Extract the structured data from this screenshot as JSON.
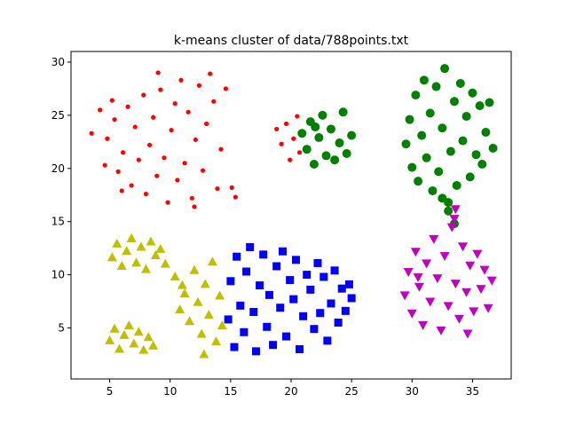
{
  "chart_data": {
    "type": "scatter",
    "title": "k-means cluster of data/788points.txt",
    "xlabel": "",
    "ylabel": "",
    "xlim": [
      1.8,
      38.2
    ],
    "ylim": [
      0.2,
      31.0
    ],
    "xticks": [
      5,
      10,
      15,
      20,
      25,
      30,
      35
    ],
    "yticks": [
      5,
      10,
      15,
      20,
      25,
      30
    ],
    "grid": false,
    "legend": "none",
    "series": [
      {
        "name": "cluster-red",
        "marker": "circle-small",
        "color": "#ff0000",
        "points": [
          [
            3.5,
            23.3
          ],
          [
            4.2,
            25.5
          ],
          [
            4.6,
            20.3
          ],
          [
            4.8,
            22.8
          ],
          [
            5.2,
            26.4
          ],
          [
            5.4,
            24.6
          ],
          [
            5.7,
            19.7
          ],
          [
            6.1,
            21.5
          ],
          [
            6.5,
            25.8
          ],
          [
            6.8,
            18.4
          ],
          [
            7.1,
            23.9
          ],
          [
            7.4,
            20.8
          ],
          [
            7.8,
            26.9
          ],
          [
            8.0,
            17.6
          ],
          [
            8.3,
            22.2
          ],
          [
            8.6,
            24.8
          ],
          [
            8.9,
            19.3
          ],
          [
            9.2,
            27.4
          ],
          [
            9.5,
            21.0
          ],
          [
            9.8,
            16.8
          ],
          [
            10.1,
            23.6
          ],
          [
            10.4,
            26.1
          ],
          [
            10.6,
            18.9
          ],
          [
            10.9,
            28.3
          ],
          [
            11.2,
            20.5
          ],
          [
            11.5,
            25.3
          ],
          [
            11.8,
            17.2
          ],
          [
            12.1,
            22.7
          ],
          [
            12.4,
            27.8
          ],
          [
            12.7,
            19.8
          ],
          [
            13.0,
            24.2
          ],
          [
            13.3,
            28.9
          ],
          [
            13.6,
            26.3
          ],
          [
            13.9,
            18.1
          ],
          [
            14.2,
            21.8
          ],
          [
            14.6,
            27.5
          ],
          [
            15.1,
            18.2
          ],
          [
            15.4,
            17.3
          ],
          [
            6.0,
            17.9
          ],
          [
            9.0,
            29.0
          ],
          [
            12.0,
            16.4
          ]
        ]
      },
      {
        "name": "cluster-green-small",
        "marker": "circle",
        "color": "#008000",
        "points": [
          [
            20.9,
            23.3
          ],
          [
            21.3,
            21.8
          ],
          [
            21.6,
            24.4
          ],
          [
            21.9,
            20.4
          ],
          [
            22.3,
            22.9
          ],
          [
            22.6,
            25.0
          ],
          [
            22.9,
            21.2
          ],
          [
            23.3,
            23.7
          ],
          [
            23.6,
            20.8
          ],
          [
            24.0,
            22.4
          ],
          [
            24.3,
            25.3
          ],
          [
            24.6,
            21.4
          ],
          [
            25.0,
            23.1
          ],
          [
            22.0,
            23.9
          ]
        ]
      },
      {
        "name": "cluster-red-small",
        "marker": "circle-small",
        "color": "#ff0000",
        "points": [
          [
            18.8,
            23.7
          ],
          [
            19.2,
            22.3
          ],
          [
            19.6,
            24.2
          ],
          [
            19.9,
            20.8
          ],
          [
            20.2,
            22.8
          ],
          [
            20.5,
            24.9
          ],
          [
            20.7,
            21.5
          ]
        ]
      },
      {
        "name": "cluster-green",
        "marker": "circle",
        "color": "#008000",
        "points": [
          [
            29.5,
            22.3
          ],
          [
            29.8,
            24.6
          ],
          [
            30.0,
            20.1
          ],
          [
            30.3,
            26.9
          ],
          [
            30.5,
            18.8
          ],
          [
            30.8,
            23.1
          ],
          [
            31.0,
            28.3
          ],
          [
            31.2,
            21.0
          ],
          [
            31.5,
            25.2
          ],
          [
            31.7,
            17.9
          ],
          [
            32.0,
            27.7
          ],
          [
            32.2,
            19.7
          ],
          [
            32.5,
            23.8
          ],
          [
            32.7,
            29.4
          ],
          [
            33.0,
            16.8
          ],
          [
            33.2,
            21.6
          ],
          [
            33.5,
            26.3
          ],
          [
            33.7,
            18.4
          ],
          [
            34.0,
            28.0
          ],
          [
            34.2,
            22.6
          ],
          [
            34.5,
            24.9
          ],
          [
            34.8,
            19.2
          ],
          [
            35.0,
            27.1
          ],
          [
            35.3,
            21.3
          ],
          [
            35.6,
            25.9
          ],
          [
            35.8,
            20.4
          ],
          [
            36.1,
            23.4
          ],
          [
            36.4,
            26.2
          ],
          [
            36.7,
            21.9
          ],
          [
            33.0,
            16.0
          ],
          [
            33.5,
            14.8
          ],
          [
            32.5,
            17.2
          ]
        ]
      },
      {
        "name": "cluster-magenta",
        "marker": "triangle-down",
        "color": "#bf00bf",
        "points": [
          [
            29.4,
            8.1
          ],
          [
            29.7,
            10.3
          ],
          [
            30.0,
            6.4
          ],
          [
            30.3,
            12.2
          ],
          [
            30.6,
            8.9
          ],
          [
            30.9,
            5.3
          ],
          [
            31.2,
            11.1
          ],
          [
            31.5,
            7.5
          ],
          [
            31.8,
            13.4
          ],
          [
            32.1,
            9.7
          ],
          [
            32.4,
            4.8
          ],
          [
            32.7,
            11.8
          ],
          [
            33.0,
            7.1
          ],
          [
            33.3,
            14.5
          ],
          [
            33.6,
            9.2
          ],
          [
            33.9,
            5.9
          ],
          [
            34.2,
            12.7
          ],
          [
            34.5,
            8.4
          ],
          [
            34.8,
            10.9
          ],
          [
            35.1,
            6.6
          ],
          [
            35.4,
            12.0
          ],
          [
            35.7,
            8.7
          ],
          [
            36.0,
            10.5
          ],
          [
            36.3,
            6.9
          ],
          [
            36.6,
            9.5
          ],
          [
            33.5,
            15.3
          ],
          [
            33.6,
            16.2
          ],
          [
            30.5,
            9.8
          ],
          [
            34.6,
            4.5
          ]
        ]
      },
      {
        "name": "cluster-blue",
        "marker": "square",
        "color": "#0000ff",
        "points": [
          [
            14.8,
            5.8
          ],
          [
            15.0,
            9.4
          ],
          [
            15.3,
            3.2
          ],
          [
            15.5,
            11.7
          ],
          [
            15.8,
            7.1
          ],
          [
            16.1,
            4.6
          ],
          [
            16.3,
            10.3
          ],
          [
            16.6,
            12.6
          ],
          [
            16.9,
            6.5
          ],
          [
            17.1,
            2.8
          ],
          [
            17.4,
            9.0
          ],
          [
            17.7,
            11.9
          ],
          [
            18.0,
            5.1
          ],
          [
            18.2,
            8.1
          ],
          [
            18.5,
            3.4
          ],
          [
            18.8,
            10.8
          ],
          [
            19.1,
            6.9
          ],
          [
            19.3,
            12.2
          ],
          [
            19.6,
            4.2
          ],
          [
            19.9,
            9.5
          ],
          [
            20.2,
            7.7
          ],
          [
            20.4,
            11.4
          ],
          [
            20.7,
            3.0
          ],
          [
            21.0,
            6.1
          ],
          [
            21.3,
            10.0
          ],
          [
            21.6,
            8.6
          ],
          [
            21.9,
            4.9
          ],
          [
            22.2,
            11.1
          ],
          [
            22.4,
            6.4
          ],
          [
            22.7,
            9.8
          ],
          [
            23.0,
            3.8
          ],
          [
            23.3,
            7.3
          ],
          [
            23.6,
            10.4
          ],
          [
            23.9,
            5.5
          ],
          [
            24.2,
            8.7
          ],
          [
            24.5,
            6.6
          ],
          [
            24.8,
            9.1
          ],
          [
            25.0,
            7.8
          ]
        ]
      },
      {
        "name": "cluster-yellow",
        "marker": "triangle-up",
        "color": "#bfbf00",
        "points": [
          [
            5.2,
            11.6
          ],
          [
            5.6,
            12.9
          ],
          [
            6.0,
            10.8
          ],
          [
            6.4,
            12.2
          ],
          [
            6.8,
            13.4
          ],
          [
            7.2,
            11.1
          ],
          [
            7.6,
            12.6
          ],
          [
            8.0,
            10.5
          ],
          [
            8.4,
            13.1
          ],
          [
            8.8,
            11.8
          ],
          [
            9.2,
            12.4
          ],
          [
            9.6,
            11.0
          ],
          [
            5.0,
            3.8
          ],
          [
            5.4,
            4.9
          ],
          [
            5.8,
            3.0
          ],
          [
            6.2,
            4.3
          ],
          [
            6.6,
            5.2
          ],
          [
            7.0,
            3.5
          ],
          [
            7.4,
            4.6
          ],
          [
            7.8,
            2.9
          ],
          [
            8.2,
            4.1
          ],
          [
            8.6,
            3.3
          ],
          [
            10.4,
            9.8
          ],
          [
            10.8,
            6.7
          ],
          [
            11.2,
            8.2
          ],
          [
            11.6,
            5.6
          ],
          [
            12.0,
            10.4
          ],
          [
            12.3,
            7.4
          ],
          [
            12.6,
            4.4
          ],
          [
            12.9,
            9.1
          ],
          [
            13.2,
            6.2
          ],
          [
            13.5,
            11.2
          ],
          [
            13.8,
            3.7
          ],
          [
            14.1,
            8.0
          ],
          [
            14.3,
            5.2
          ],
          [
            11.0,
            9.0
          ],
          [
            12.8,
            2.5
          ]
        ]
      }
    ]
  }
}
